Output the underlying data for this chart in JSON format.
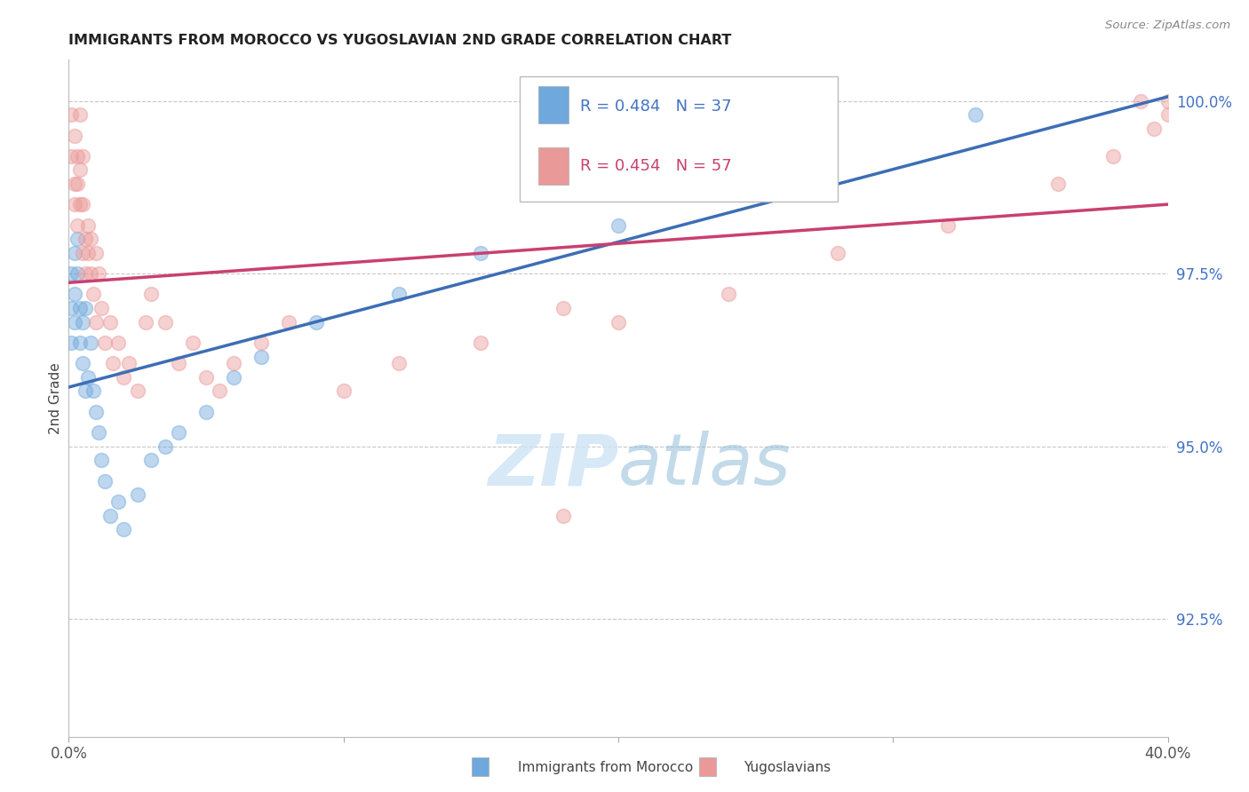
{
  "title": "IMMIGRANTS FROM MOROCCO VS YUGOSLAVIAN 2ND GRADE CORRELATION CHART",
  "source": "Source: ZipAtlas.com",
  "ylabel": "2nd Grade",
  "ylabel_right_ticks": [
    "100.0%",
    "97.5%",
    "95.0%",
    "92.5%"
  ],
  "ylabel_right_values": [
    1.0,
    0.975,
    0.95,
    0.925
  ],
  "xmin": 0.0,
  "xmax": 0.4,
  "ymin": 0.908,
  "ymax": 1.006,
  "legend_r_blue": "R = 0.484",
  "legend_n_blue": "N = 37",
  "legend_r_pink": "R = 0.454",
  "legend_n_pink": "N = 57",
  "blue_color": "#6fa8dc",
  "pink_color": "#ea9999",
  "blue_line_color": "#3d6eb5",
  "pink_line_color": "#c94070",
  "background_color": "#ffffff",
  "grid_color": "#c8c8c8",
  "morocco_x": [
    0.001,
    0.001,
    0.001,
    0.002,
    0.002,
    0.002,
    0.003,
    0.003,
    0.004,
    0.004,
    0.005,
    0.005,
    0.006,
    0.006,
    0.007,
    0.008,
    0.009,
    0.01,
    0.011,
    0.012,
    0.013,
    0.015,
    0.018,
    0.02,
    0.025,
    0.03,
    0.035,
    0.04,
    0.05,
    0.06,
    0.07,
    0.09,
    0.12,
    0.15,
    0.2,
    0.26,
    0.33
  ],
  "morocco_y": [
    0.975,
    0.97,
    0.965,
    0.978,
    0.972,
    0.968,
    0.975,
    0.98,
    0.97,
    0.965,
    0.968,
    0.962,
    0.958,
    0.97,
    0.96,
    0.965,
    0.958,
    0.955,
    0.952,
    0.948,
    0.945,
    0.94,
    0.942,
    0.938,
    0.943,
    0.948,
    0.95,
    0.952,
    0.955,
    0.96,
    0.963,
    0.968,
    0.972,
    0.978,
    0.982,
    0.99,
    0.998
  ],
  "yugo_x": [
    0.001,
    0.001,
    0.002,
    0.002,
    0.002,
    0.003,
    0.003,
    0.003,
    0.004,
    0.004,
    0.004,
    0.005,
    0.005,
    0.005,
    0.006,
    0.006,
    0.007,
    0.007,
    0.008,
    0.008,
    0.009,
    0.01,
    0.01,
    0.011,
    0.012,
    0.013,
    0.015,
    0.016,
    0.018,
    0.02,
    0.022,
    0.025,
    0.028,
    0.03,
    0.035,
    0.04,
    0.045,
    0.05,
    0.055,
    0.06,
    0.07,
    0.08,
    0.1,
    0.12,
    0.15,
    0.18,
    0.2,
    0.24,
    0.28,
    0.32,
    0.36,
    0.38,
    0.395,
    0.4,
    0.4,
    0.18,
    0.39
  ],
  "yugo_y": [
    0.998,
    0.992,
    0.995,
    0.988,
    0.985,
    0.992,
    0.988,
    0.982,
    0.99,
    0.985,
    0.998,
    0.985,
    0.978,
    0.992,
    0.98,
    0.975,
    0.982,
    0.978,
    0.975,
    0.98,
    0.972,
    0.978,
    0.968,
    0.975,
    0.97,
    0.965,
    0.968,
    0.962,
    0.965,
    0.96,
    0.962,
    0.958,
    0.968,
    0.972,
    0.968,
    0.962,
    0.965,
    0.96,
    0.958,
    0.962,
    0.965,
    0.968,
    0.958,
    0.962,
    0.965,
    0.97,
    0.968,
    0.972,
    0.978,
    0.982,
    0.988,
    0.992,
    0.996,
    0.998,
    1.0,
    0.94,
    1.0
  ]
}
